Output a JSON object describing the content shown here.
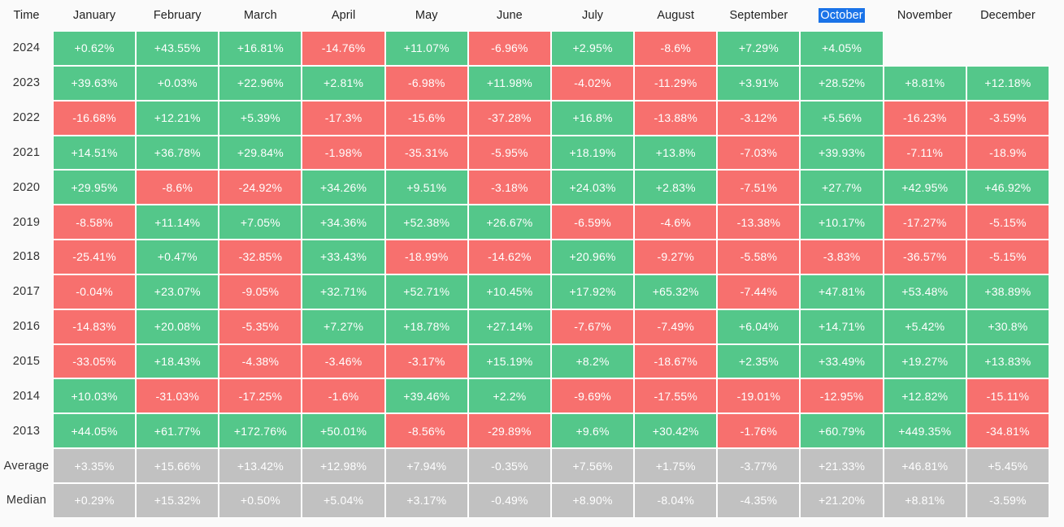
{
  "colors": {
    "positive": "#54C78A",
    "negative": "#F7706E",
    "neutral": "#C1C1C1",
    "selection_bg": "#1A73E8",
    "selection_text": "#FFFFFF",
    "page_bg": "#FAFAFA",
    "grid_gap": "#FFFFFF",
    "header_text": "#1F1F1F",
    "label_text": "#333333",
    "cell_text": "#FFFFFF"
  },
  "chart_data": {
    "type": "heatmap",
    "corner_label": "Time",
    "columns": [
      "January",
      "February",
      "March",
      "April",
      "May",
      "June",
      "July",
      "August",
      "September",
      "October",
      "November",
      "December"
    ],
    "selected_month": "October",
    "value_semantics": "positive values green, negative values red, summary rows gray, empty cells blank",
    "rows": [
      {
        "label": "2024",
        "kind": "year",
        "values": [
          "+0.62%",
          "+43.55%",
          "+16.81%",
          "-14.76%",
          "+11.07%",
          "-6.96%",
          "+2.95%",
          "-8.6%",
          "+7.29%",
          "+4.05%",
          "",
          ""
        ]
      },
      {
        "label": "2023",
        "kind": "year",
        "values": [
          "+39.63%",
          "+0.03%",
          "+22.96%",
          "+2.81%",
          "-6.98%",
          "+11.98%",
          "-4.02%",
          "-11.29%",
          "+3.91%",
          "+28.52%",
          "+8.81%",
          "+12.18%"
        ]
      },
      {
        "label": "2022",
        "kind": "year",
        "values": [
          "-16.68%",
          "+12.21%",
          "+5.39%",
          "-17.3%",
          "-15.6%",
          "-37.28%",
          "+16.8%",
          "-13.88%",
          "-3.12%",
          "+5.56%",
          "-16.23%",
          "-3.59%"
        ]
      },
      {
        "label": "2021",
        "kind": "year",
        "values": [
          "+14.51%",
          "+36.78%",
          "+29.84%",
          "-1.98%",
          "-35.31%",
          "-5.95%",
          "+18.19%",
          "+13.8%",
          "-7.03%",
          "+39.93%",
          "-7.11%",
          "-18.9%"
        ]
      },
      {
        "label": "2020",
        "kind": "year",
        "values": [
          "+29.95%",
          "-8.6%",
          "-24.92%",
          "+34.26%",
          "+9.51%",
          "-3.18%",
          "+24.03%",
          "+2.83%",
          "-7.51%",
          "+27.7%",
          "+42.95%",
          "+46.92%"
        ]
      },
      {
        "label": "2019",
        "kind": "year",
        "values": [
          "-8.58%",
          "+11.14%",
          "+7.05%",
          "+34.36%",
          "+52.38%",
          "+26.67%",
          "-6.59%",
          "-4.6%",
          "-13.38%",
          "+10.17%",
          "-17.27%",
          "-5.15%"
        ]
      },
      {
        "label": "2018",
        "kind": "year",
        "values": [
          "-25.41%",
          "+0.47%",
          "-32.85%",
          "+33.43%",
          "-18.99%",
          "-14.62%",
          "+20.96%",
          "-9.27%",
          "-5.58%",
          "-3.83%",
          "-36.57%",
          "-5.15%"
        ]
      },
      {
        "label": "2017",
        "kind": "year",
        "values": [
          "-0.04%",
          "+23.07%",
          "-9.05%",
          "+32.71%",
          "+52.71%",
          "+10.45%",
          "+17.92%",
          "+65.32%",
          "-7.44%",
          "+47.81%",
          "+53.48%",
          "+38.89%"
        ]
      },
      {
        "label": "2016",
        "kind": "year",
        "values": [
          "-14.83%",
          "+20.08%",
          "-5.35%",
          "+7.27%",
          "+18.78%",
          "+27.14%",
          "-7.67%",
          "-7.49%",
          "+6.04%",
          "+14.71%",
          "+5.42%",
          "+30.8%"
        ]
      },
      {
        "label": "2015",
        "kind": "year",
        "values": [
          "-33.05%",
          "+18.43%",
          "-4.38%",
          "-3.46%",
          "-3.17%",
          "+15.19%",
          "+8.2%",
          "-18.67%",
          "+2.35%",
          "+33.49%",
          "+19.27%",
          "+13.83%"
        ]
      },
      {
        "label": "2014",
        "kind": "year",
        "values": [
          "+10.03%",
          "-31.03%",
          "-17.25%",
          "-1.6%",
          "+39.46%",
          "+2.2%",
          "-9.69%",
          "-17.55%",
          "-19.01%",
          "-12.95%",
          "+12.82%",
          "-15.11%"
        ]
      },
      {
        "label": "2013",
        "kind": "year",
        "values": [
          "+44.05%",
          "+61.77%",
          "+172.76%",
          "+50.01%",
          "-8.56%",
          "-29.89%",
          "+9.6%",
          "+30.42%",
          "-1.76%",
          "+60.79%",
          "+449.35%",
          "-34.81%"
        ]
      },
      {
        "label": "Average",
        "kind": "summary",
        "values": [
          "+3.35%",
          "+15.66%",
          "+13.42%",
          "+12.98%",
          "+7.94%",
          "-0.35%",
          "+7.56%",
          "+1.75%",
          "-3.77%",
          "+21.33%",
          "+46.81%",
          "+5.45%"
        ]
      },
      {
        "label": "Median",
        "kind": "summary",
        "values": [
          "+0.29%",
          "+15.32%",
          "+0.50%",
          "+5.04%",
          "+3.17%",
          "-0.49%",
          "+8.90%",
          "-8.04%",
          "-4.35%",
          "+21.20%",
          "+8.81%",
          "-3.59%"
        ]
      }
    ]
  }
}
